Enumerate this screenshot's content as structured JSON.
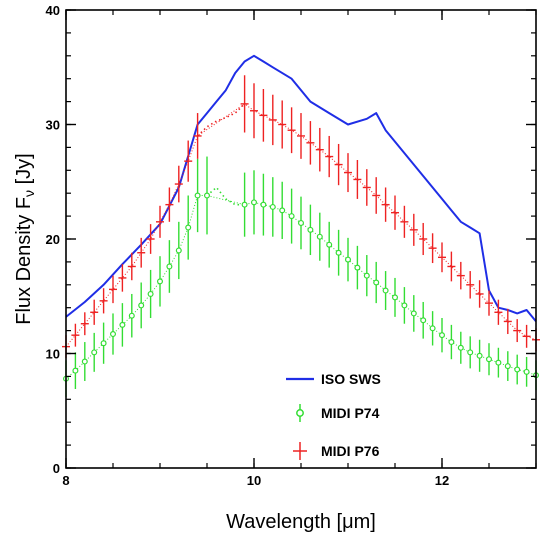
{
  "chart_data": {
    "type": "line",
    "xlabel": "Wavelength [μm]",
    "ylabel": "Flux Density F",
    "ylabel_sub": "ν",
    "ylabel_unit": " [Jy]",
    "xlim": [
      8,
      13
    ],
    "ylim": [
      0,
      40
    ],
    "x_ticks": [
      8,
      10,
      12
    ],
    "y_ticks": [
      0,
      10,
      20,
      30,
      40
    ],
    "x_minor_step": 0.5,
    "y_minor_step": 2,
    "grid": false,
    "legend_position": "bottom-right",
    "legend": [
      {
        "label": "ISO SWS",
        "marker": "line",
        "color": "#1f2ee6"
      },
      {
        "label": "MIDI P74",
        "marker": "circle-errorbar",
        "color": "#33dd33"
      },
      {
        "label": "MIDI P76",
        "marker": "cross-errorbar",
        "color": "#ee2222"
      }
    ],
    "series": [
      {
        "name": "ISO SWS",
        "style": "line",
        "color": "#1f2ee6",
        "x": [
          8.0,
          8.2,
          8.4,
          8.6,
          8.8,
          9.0,
          9.2,
          9.4,
          9.5,
          9.6,
          9.7,
          9.8,
          9.9,
          10.0,
          10.1,
          10.2,
          10.4,
          10.6,
          10.8,
          11.0,
          11.2,
          11.3,
          11.4,
          11.6,
          11.8,
          12.0,
          12.1,
          12.2,
          12.3,
          12.4,
          12.5,
          12.6,
          12.7,
          12.8,
          12.9,
          13.0
        ],
        "y": [
          13.2,
          14.5,
          16.0,
          17.8,
          19.5,
          21.3,
          24.5,
          30.0,
          31.0,
          32.0,
          33.0,
          34.5,
          35.5,
          36.0,
          35.5,
          35.0,
          34.0,
          32.0,
          31.0,
          30.0,
          30.5,
          31.0,
          29.5,
          27.5,
          25.5,
          23.5,
          22.5,
          21.5,
          21.0,
          20.5,
          15.5,
          14.0,
          13.8,
          13.5,
          13.8,
          12.8
        ]
      },
      {
        "name": "MIDI P74",
        "style": "circle-errorbar",
        "color": "#33dd33",
        "x": [
          8.0,
          8.1,
          8.2,
          8.3,
          8.4,
          8.5,
          8.6,
          8.7,
          8.8,
          8.9,
          9.0,
          9.1,
          9.2,
          9.3,
          9.4,
          9.5,
          9.9,
          10.0,
          10.1,
          10.2,
          10.3,
          10.4,
          10.5,
          10.6,
          10.7,
          10.8,
          10.9,
          11.0,
          11.1,
          11.2,
          11.3,
          11.4,
          11.5,
          11.6,
          11.7,
          11.8,
          11.9,
          12.0,
          12.1,
          12.2,
          12.3,
          12.4,
          12.5,
          12.6,
          12.7,
          12.8,
          12.9,
          13.0
        ],
        "y": [
          7.8,
          8.5,
          9.3,
          10.1,
          10.9,
          11.7,
          12.5,
          13.3,
          14.2,
          15.2,
          16.3,
          17.6,
          19.0,
          21.0,
          23.8,
          23.8,
          23.0,
          23.2,
          23.0,
          22.8,
          22.5,
          22.0,
          21.4,
          20.8,
          20.2,
          19.5,
          18.8,
          18.2,
          17.5,
          16.8,
          16.2,
          15.5,
          14.9,
          14.2,
          13.5,
          12.9,
          12.2,
          11.6,
          11.0,
          10.5,
          10.1,
          9.8,
          9.5,
          9.2,
          8.9,
          8.6,
          8.4,
          8.1
        ],
        "yerr": [
          1.6,
          1.6,
          1.7,
          1.7,
          1.8,
          1.8,
          1.9,
          1.9,
          2.0,
          2.1,
          2.2,
          2.3,
          2.5,
          2.8,
          3.2,
          3.4,
          2.8,
          2.8,
          2.7,
          2.6,
          2.5,
          2.4,
          2.3,
          2.2,
          2.1,
          2.0,
          2.0,
          1.9,
          1.9,
          1.8,
          1.8,
          1.7,
          1.7,
          1.6,
          1.6,
          1.6,
          1.5,
          1.5,
          1.5,
          1.4,
          1.4,
          1.4,
          1.4,
          1.3,
          1.3,
          1.3,
          1.3,
          1.3
        ]
      },
      {
        "name": "MIDI P76",
        "style": "cross-errorbar",
        "color": "#ee2222",
        "x": [
          8.0,
          8.1,
          8.2,
          8.3,
          8.4,
          8.5,
          8.6,
          8.7,
          8.8,
          8.9,
          9.0,
          9.1,
          9.2,
          9.3,
          9.4,
          9.9,
          10.0,
          10.1,
          10.2,
          10.3,
          10.4,
          10.5,
          10.6,
          10.7,
          10.8,
          10.9,
          11.0,
          11.1,
          11.2,
          11.3,
          11.4,
          11.5,
          11.6,
          11.7,
          11.8,
          11.9,
          12.0,
          12.1,
          12.2,
          12.3,
          12.4,
          12.5,
          12.6,
          12.7,
          12.8,
          12.9,
          13.0
        ],
        "y": [
          10.6,
          11.6,
          12.6,
          13.6,
          14.6,
          15.6,
          16.6,
          17.6,
          18.8,
          20.0,
          21.5,
          23.0,
          24.8,
          26.8,
          29.0,
          31.8,
          31.2,
          30.8,
          30.4,
          30.0,
          29.5,
          29.0,
          28.4,
          27.8,
          27.2,
          26.5,
          25.8,
          25.2,
          24.5,
          23.8,
          23.0,
          22.3,
          21.5,
          20.8,
          20.0,
          19.2,
          18.4,
          17.6,
          16.8,
          16.0,
          15.2,
          14.4,
          13.6,
          12.8,
          12.0,
          11.5,
          11.2
        ],
        "yerr": [
          1.0,
          1.0,
          1.0,
          1.1,
          1.1,
          1.2,
          1.2,
          1.2,
          1.3,
          1.3,
          1.4,
          1.5,
          1.6,
          1.8,
          2.0,
          2.5,
          2.4,
          2.3,
          2.2,
          2.1,
          2.0,
          2.0,
          1.9,
          1.9,
          1.8,
          1.8,
          1.7,
          1.7,
          1.6,
          1.6,
          1.5,
          1.5,
          1.4,
          1.4,
          1.4,
          1.3,
          1.3,
          1.3,
          1.2,
          1.2,
          1.2,
          1.1,
          1.1,
          1.1,
          1.0,
          1.0,
          1.0
        ]
      }
    ],
    "gap_segments": [
      {
        "series": "MIDI P74",
        "color": "#33dd33",
        "x": [
          9.5,
          9.6,
          9.7,
          9.8,
          9.9
        ],
        "y": [
          23.8,
          24.5,
          23.5,
          23.0,
          23.0
        ]
      },
      {
        "series": "MIDI P76",
        "color": "#ee2222",
        "x": [
          9.4,
          9.5,
          9.6,
          9.7,
          9.8,
          9.9
        ],
        "y": [
          29.0,
          29.8,
          30.3,
          30.6,
          31.0,
          31.8
        ]
      }
    ]
  }
}
